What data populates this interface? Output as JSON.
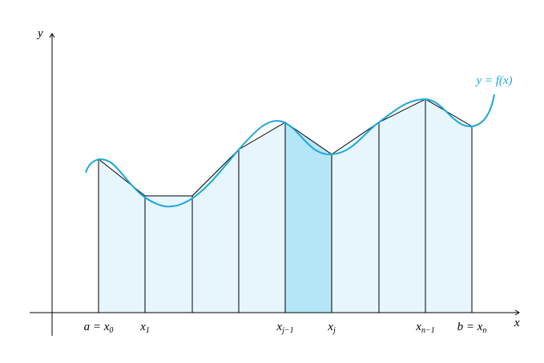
{
  "axes": {
    "x_label": "x",
    "y_label": "y"
  },
  "curve_label": "y = f(x)",
  "tick_labels": [
    {
      "text": "a = x",
      "sub": "0"
    },
    {
      "text": "x",
      "sub": "1"
    },
    {
      "text": "x",
      "sub": "j−1"
    },
    {
      "text": "x",
      "sub": "j"
    },
    {
      "text": "x",
      "sub": "n−1"
    },
    {
      "text": "b = x",
      "sub": "n"
    }
  ]
}
